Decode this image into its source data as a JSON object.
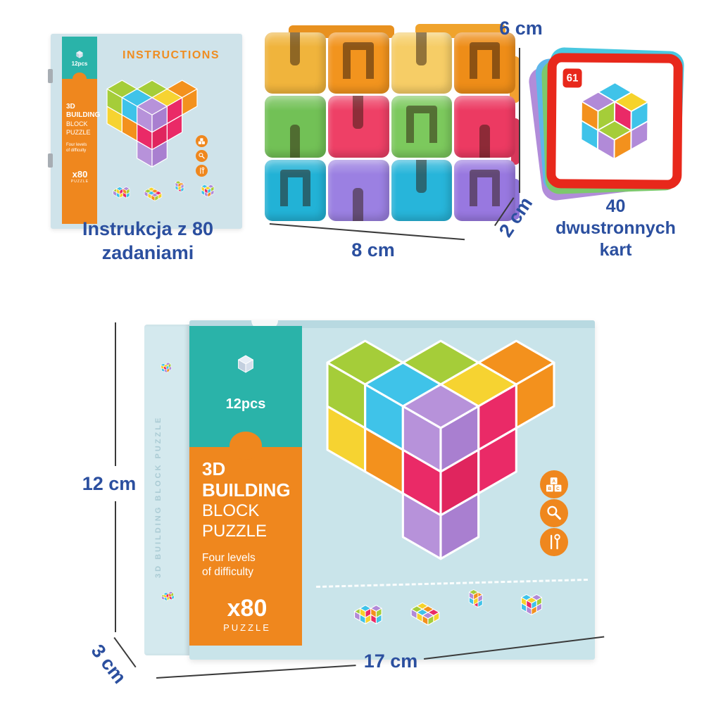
{
  "colors": {
    "teal": "#2ab3a9",
    "orange": "#ef871e",
    "dim_blue": "#2b4f9f",
    "card_red": "#e8281b",
    "booklet_bg": "#cfe3ea",
    "box_front_bg": "#c9e4ea",
    "box_side_bg": "#d4e9ee",
    "measure_line": "#3a3a3a"
  },
  "booklet": {
    "pcs_label": "12pcs",
    "cover_title": "INSTRUCTIONS",
    "spine": {
      "l1": "3D",
      "l2": "BUILDING",
      "l3": "BLOCK",
      "l4": "PUZZLE",
      "l5": "Four levels",
      "l6": "of difficulty",
      "l7": "x80",
      "l8": "PUZZLE"
    },
    "caption_line1": "Instrukcja z 80",
    "caption_line2": "zadaniami"
  },
  "blocks": {
    "rows": [
      [
        {
          "c": "#f0b43c",
          "s": "u"
        },
        {
          "c": "#f2941e",
          "s": "n"
        },
        {
          "c": "#f6cd66",
          "s": "u"
        },
        {
          "c": "#ee8d18",
          "s": "n"
        }
      ],
      [
        {
          "c": "#72c156",
          "s": "d"
        },
        {
          "c": "#ee4066",
          "s": "u"
        },
        {
          "c": "#7cc95d",
          "s": "n"
        },
        {
          "c": "#ec3a62",
          "s": "d"
        }
      ],
      [
        {
          "c": "#22b2d6",
          "s": "n"
        },
        {
          "c": "#9b80e2",
          "s": "d"
        },
        {
          "c": "#27b5da",
          "s": "u"
        },
        {
          "c": "#9878e0",
          "s": "n"
        }
      ]
    ]
  },
  "cards": {
    "badge": "61",
    "caption_line1": "40",
    "caption_line2": "dwustronnych",
    "caption_line3": "kart",
    "stack_colors": [
      "#b18cd9",
      "#5fb6ea",
      "#7dc86c",
      "#49c7e0"
    ]
  },
  "box": {
    "pcs_label": "12pcs",
    "panel": {
      "l1": "3D",
      "l2": "BUILDING",
      "l3": "BLOCK",
      "l4": "PUZZLE",
      "l5": "Four levels",
      "l6": "of difficulty",
      "l7": "x80",
      "l8": "PUZZLE"
    },
    "side_text": "3D BUILDING BLOCK PUZZLE"
  },
  "dimensions": {
    "blocks": {
      "height": "6 cm",
      "width": "8 cm",
      "depth": "2 cm"
    },
    "box": {
      "height": "12 cm",
      "width": "17 cm",
      "depth": "3 cm"
    }
  },
  "figures": {
    "palette": [
      "#f6d32b",
      "#f3911d",
      "#ea2a67",
      "#a5cd39",
      "#3fc3e9",
      "#b18ad8"
    ],
    "sets": {
      "main": [
        {
          "i": 0,
          "j": 2,
          "k": 1,
          "top": "#a5cd39",
          "left": "#a5cd39"
        },
        {
          "i": 0,
          "j": 2,
          "k": 0,
          "left": "#f6d331"
        },
        {
          "i": 1,
          "j": 2,
          "k": 1,
          "top": "#3fc3e9",
          "left": "#3fc3e9"
        },
        {
          "i": 1,
          "j": 2,
          "k": 0,
          "left": "#f3911d"
        },
        {
          "i": 1,
          "j": 1,
          "k": 1,
          "top": "#a5cd39"
        },
        {
          "i": 2,
          "j": 0,
          "k": 1,
          "top": "#f3911d",
          "right": "#f3911d"
        },
        {
          "i": 2,
          "j": 1,
          "k": 1,
          "top": "#f6d331",
          "right": "#ea2a67"
        },
        {
          "i": 2,
          "j": 1,
          "k": 0,
          "right": "#ea2a67"
        },
        {
          "i": 2,
          "j": 2,
          "k": 1,
          "top": "#b792da",
          "left": "#b792da",
          "right": "#a97fd0"
        },
        {
          "i": 2,
          "j": 2,
          "k": 0,
          "left": "#ea2a67",
          "right": "#e0255e"
        },
        {
          "i": 2,
          "j": 2,
          "k": -1,
          "left": "#b792da",
          "right": "#a97fd0"
        }
      ],
      "card": [
        {
          "i": 0,
          "j": 0,
          "k": 0
        },
        {
          "i": 1,
          "j": 0,
          "k": 0
        },
        {
          "i": 0,
          "j": 1,
          "k": 0
        },
        {
          "i": 1,
          "j": 1,
          "k": 0
        },
        {
          "i": 0,
          "j": 0,
          "k": 1
        },
        {
          "i": 0,
          "j": 1,
          "k": 1
        },
        {
          "i": 1,
          "j": 0,
          "k": 1
        }
      ],
      "s1": [
        {
          "i": 2,
          "j": 0,
          "k": 0
        },
        {
          "i": 1,
          "j": 0,
          "k": 0
        },
        {
          "i": 1,
          "j": 1,
          "k": 0
        },
        {
          "i": 0,
          "j": 1,
          "k": 0
        },
        {
          "i": 1,
          "j": 1,
          "k": 1
        },
        {
          "i": 2,
          "j": 0,
          "k": 1
        }
      ],
      "s2": [
        {
          "i": 0,
          "j": 0,
          "k": 0
        },
        {
          "i": 1,
          "j": 0,
          "k": 0
        },
        {
          "i": 2,
          "j": 0,
          "k": 0
        },
        {
          "i": 0,
          "j": 1,
          "k": 0
        },
        {
          "i": 1,
          "j": 1,
          "k": 0
        },
        {
          "i": 2,
          "j": 1,
          "k": 0
        }
      ],
      "s3": [
        {
          "i": 0,
          "j": 0,
          "k": 0
        },
        {
          "i": 0,
          "j": 0,
          "k": 1
        },
        {
          "i": 0,
          "j": 1,
          "k": 1
        },
        {
          "i": 0,
          "j": 1,
          "k": 2
        }
      ],
      "s4": [
        {
          "i": 0,
          "j": 0,
          "k": 0
        },
        {
          "i": 1,
          "j": 0,
          "k": 0
        },
        {
          "i": 0,
          "j": 1,
          "k": 0
        },
        {
          "i": 1,
          "j": 1,
          "k": 0
        },
        {
          "i": 0,
          "j": 1,
          "k": 1
        },
        {
          "i": 1,
          "j": 0,
          "k": 1
        },
        {
          "i": 1,
          "j": 1,
          "k": 1
        }
      ],
      "cube1": [
        {
          "i": 0,
          "j": 0,
          "k": 0,
          "top": "#e8eef7",
          "left": "#c3cfdf",
          "right": "#d6dfec"
        }
      ]
    }
  }
}
